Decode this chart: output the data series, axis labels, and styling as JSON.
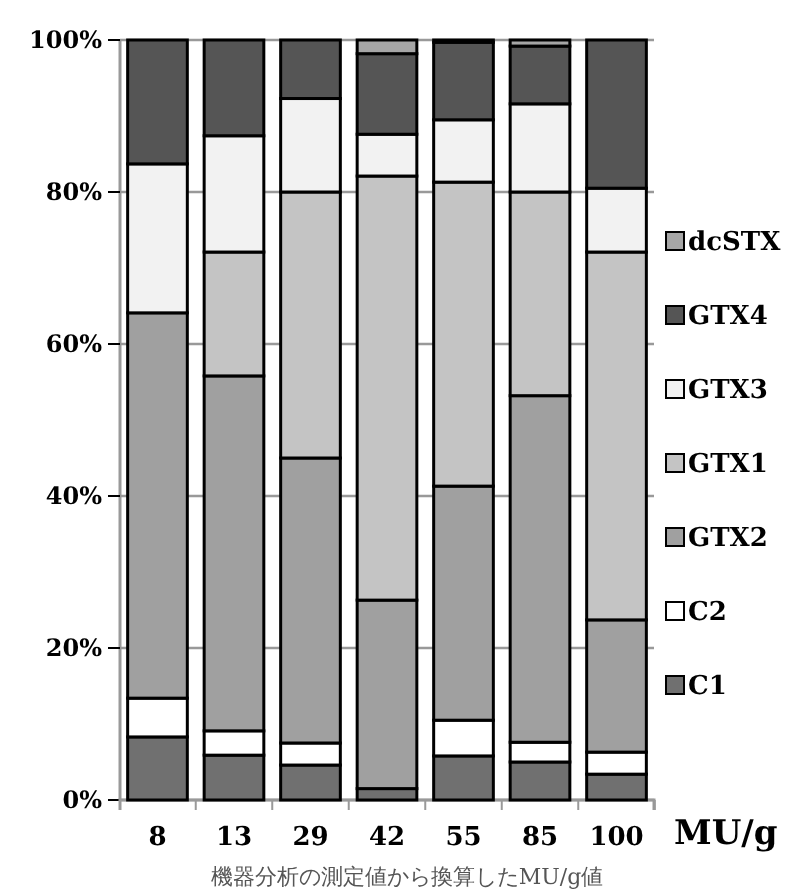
{
  "chart_data": {
    "type": "bar",
    "stacked": true,
    "xlabel": "MU/g",
    "annotations": [
      "機器分析の測定値から換算したMU/g値"
    ],
    "categories": [
      "8",
      "13",
      "29",
      "42",
      "55",
      "85",
      "100"
    ],
    "series": [
      {
        "name": "C1",
        "color": "#707070",
        "values": [
          8.3,
          5.9,
          4.6,
          1.5,
          5.8,
          5.0,
          3.4
        ]
      },
      {
        "name": "C2",
        "color": "#ffffff",
        "values": [
          5.1,
          3.2,
          2.9,
          null,
          4.7,
          2.6,
          2.9
        ]
      },
      {
        "name": "GTX2",
        "color": "#a0a0a0",
        "values": [
          50.7,
          46.7,
          37.5,
          24.8,
          30.8,
          45.6,
          17.4
        ]
      },
      {
        "name": "GTX1",
        "color": "#c4c4c4",
        "values": [
          0,
          16.3,
          35.0,
          55.8,
          40.0,
          26.8,
          48.4
        ]
      },
      {
        "name": "GTX3",
        "color": "#f2f2f2",
        "values": [
          19.6,
          15.3,
          12.3,
          5.5,
          8.2,
          11.6,
          8.4
        ]
      },
      {
        "name": "GTX4",
        "color": "#555555",
        "values": [
          16.3,
          12.6,
          7.7,
          10.6,
          10.2,
          7.6,
          19.5
        ]
      },
      {
        "name": "dcSTX",
        "color": "#a6a6a6",
        "values": [
          0,
          0,
          0,
          1.8,
          0.3,
          0.8,
          0
        ]
      }
    ],
    "ylim": [
      0,
      100
    ],
    "yticks": [
      {
        "value": 0,
        "label": "0%"
      },
      {
        "value": 20,
        "label": "20%"
      },
      {
        "value": 40,
        "label": "40%"
      },
      {
        "value": 60,
        "label": "60%"
      },
      {
        "value": 80,
        "label": "80%"
      },
      {
        "value": 100,
        "label": "100%"
      }
    ],
    "grid": "y",
    "legend": "right"
  }
}
